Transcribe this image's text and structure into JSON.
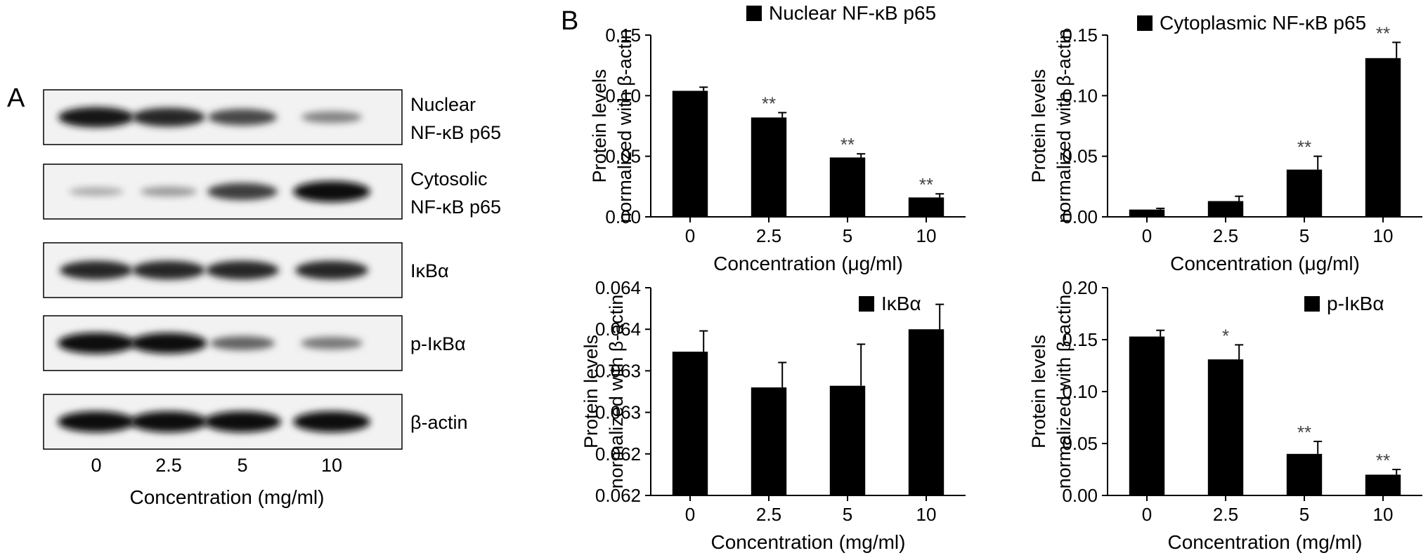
{
  "panels": {
    "a": "A",
    "b": "B"
  },
  "blot": {
    "rows": [
      {
        "label_lines": [
          "Nuclear",
          "NF-κB p65"
        ],
        "intensities": [
          0.95,
          0.85,
          0.7,
          0.4
        ]
      },
      {
        "label_lines": [
          "Cytosolic",
          "NF-κB p65"
        ],
        "intensities": [
          0.2,
          0.28,
          0.75,
          1.0
        ]
      },
      {
        "label_lines": [
          "IκBα"
        ],
        "intensities": [
          0.85,
          0.85,
          0.85,
          0.85
        ]
      },
      {
        "label_lines": [
          "p-IκBα"
        ],
        "intensities": [
          1.0,
          0.98,
          0.55,
          0.45
        ]
      },
      {
        "label_lines": [
          "β-actin"
        ],
        "intensities": [
          1.0,
          1.0,
          1.0,
          1.0
        ]
      }
    ],
    "lanes": [
      "0",
      "2.5",
      "5",
      "10"
    ],
    "xlabel": "Concentration (mg/ml)"
  },
  "colors": {
    "bar": "#000000",
    "band": "#111111",
    "frame": "#000000"
  },
  "chart_data": [
    {
      "type": "bar",
      "legend": "Nuclear NF-κB p65",
      "categories": [
        "0",
        "2.5",
        "5",
        "10"
      ],
      "values": [
        0.104,
        0.082,
        0.049,
        0.016
      ],
      "errors": [
        0.003,
        0.004,
        0.003,
        0.003
      ],
      "annotations": [
        "",
        "**",
        "**",
        "**"
      ],
      "ylim": [
        0,
        0.15
      ],
      "yticks": [
        "0.00",
        "0.05",
        "0.10",
        "0.15"
      ],
      "ylabel_lines": [
        "Protein levels",
        "normalized with β-actin"
      ],
      "xlabel": "Concentration (μg/ml)"
    },
    {
      "type": "bar",
      "legend": "Cytoplasmic NF-κB p65",
      "categories": [
        "0",
        "2.5",
        "5",
        "10"
      ],
      "values": [
        0.006,
        0.013,
        0.039,
        0.131
      ],
      "errors": [
        0.001,
        0.004,
        0.011,
        0.013
      ],
      "annotations": [
        "",
        "",
        "**",
        "**"
      ],
      "ylim": [
        0,
        0.15
      ],
      "yticks": [
        "0.00",
        "0.05",
        "0.10",
        "0.15"
      ],
      "ylabel_lines": [
        "Protein levels",
        "normalized with β-actin"
      ],
      "xlabel": "Concentration (μg/ml)"
    },
    {
      "type": "bar",
      "legend": "IκBα",
      "categories": [
        "0",
        "2.5",
        "5",
        "10"
      ],
      "values": [
        0.06323,
        0.0628,
        0.06282,
        0.0635
      ],
      "errors": [
        0.00025,
        0.0003,
        0.0005,
        0.0003
      ],
      "annotations": [
        "",
        "",
        "",
        ""
      ],
      "ylim": [
        0.0615,
        0.064
      ],
      "yticks": [
        "0.062",
        "0.062",
        "0.063",
        "0.063",
        "0.064",
        "0.064"
      ],
      "ylabel_lines": [
        "Protein levels",
        "normalized with β-actin"
      ],
      "xlabel": "Concentration (mg/ml)"
    },
    {
      "type": "bar",
      "legend": "p-IκBα",
      "categories": [
        "0",
        "2.5",
        "5",
        "10"
      ],
      "values": [
        0.153,
        0.131,
        0.04,
        0.02
      ],
      "errors": [
        0.006,
        0.014,
        0.012,
        0.005
      ],
      "annotations": [
        "",
        "*",
        "**",
        "**"
      ],
      "ylim": [
        0,
        0.2
      ],
      "yticks": [
        "0.00",
        "0.05",
        "0.10",
        "0.15",
        "0.20"
      ],
      "ylabel_lines": [
        "Protein levels",
        "normalized with β-actin"
      ],
      "xlabel": "Concentration (mg/ml)"
    }
  ]
}
